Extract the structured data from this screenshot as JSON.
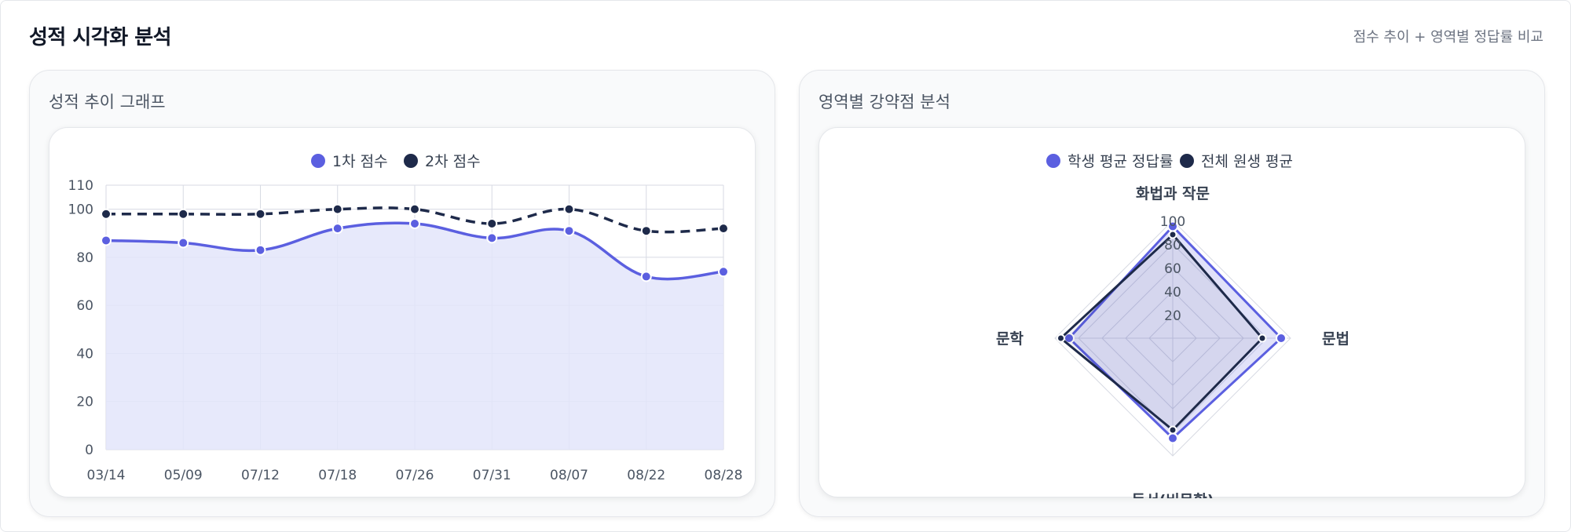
{
  "header": {
    "title": "성적 시각화 분석",
    "subtitle": "점수 추이 + 영역별 정답률 비교"
  },
  "panels": {
    "trend_title": "성적 추이 그래프",
    "radar_title": "영역별 강약점 분석"
  },
  "colors": {
    "primary": "#5b5fe0",
    "navy": "#1e2a4a",
    "fill": "#e3e5fa",
    "grid": "#d7dae3"
  },
  "chart_data": [
    {
      "type": "line",
      "categories": [
        "03/14",
        "05/09",
        "07/12",
        "07/18",
        "07/26",
        "07/31",
        "08/07",
        "08/22",
        "08/28"
      ],
      "series": [
        {
          "name": "1차 점수",
          "values": [
            87,
            86,
            83,
            92,
            94,
            88,
            91,
            72,
            74
          ],
          "style": "solid-filled"
        },
        {
          "name": "2차 점수",
          "values": [
            98,
            98,
            98,
            100,
            100,
            94,
            100,
            91,
            92
          ],
          "style": "dashed"
        }
      ],
      "yticks": [
        0,
        20,
        40,
        60,
        80,
        100,
        110
      ],
      "ylim": [
        0,
        110
      ],
      "grid": true,
      "legend": "top-center"
    },
    {
      "type": "radar",
      "axes": [
        "화법과 작문",
        "문법",
        "독서(비문학)",
        "문학"
      ],
      "series": [
        {
          "name": "학생 평균 정답률",
          "values": [
            95,
            92,
            85,
            88
          ]
        },
        {
          "name": "전체 원생 평균",
          "values": [
            88,
            76,
            78,
            95
          ]
        }
      ],
      "rticks": [
        20,
        40,
        60,
        80,
        100
      ],
      "rlim": [
        0,
        100
      ],
      "legend": "top-center"
    }
  ]
}
